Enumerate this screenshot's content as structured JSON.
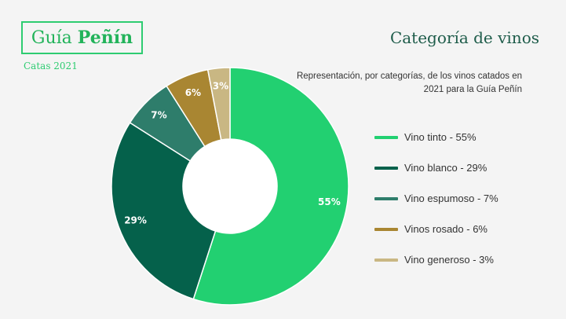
{
  "logo": {
    "part1": "Guía",
    "part2": "Peñín"
  },
  "subtitle": "Catas 2021",
  "chart_data": {
    "type": "pie",
    "title": "Categoría de vinos",
    "subtitle": "Representación, por categorías, de los vinos catados en 2021 para la Guía Peñín",
    "categories": [
      "Vino tinto",
      "Vino blanco",
      "Vino espumoso",
      "Vinos rosado",
      "Vino generoso"
    ],
    "values": [
      55,
      29,
      7,
      6,
      3
    ],
    "data_labels": [
      "55%",
      "29%",
      "7%",
      "6%",
      "3%"
    ],
    "legend_labels": [
      "Vino tinto - 55%",
      "Vino blanco - 29%",
      "Vino espumoso - 7%",
      "Vinos rosado - 6%",
      "Vino generoso - 3%"
    ],
    "colors": [
      "#22d071",
      "#05614b",
      "#2e7d6b",
      "#a98632",
      "#c9b783"
    ],
    "legend_position": "right"
  }
}
